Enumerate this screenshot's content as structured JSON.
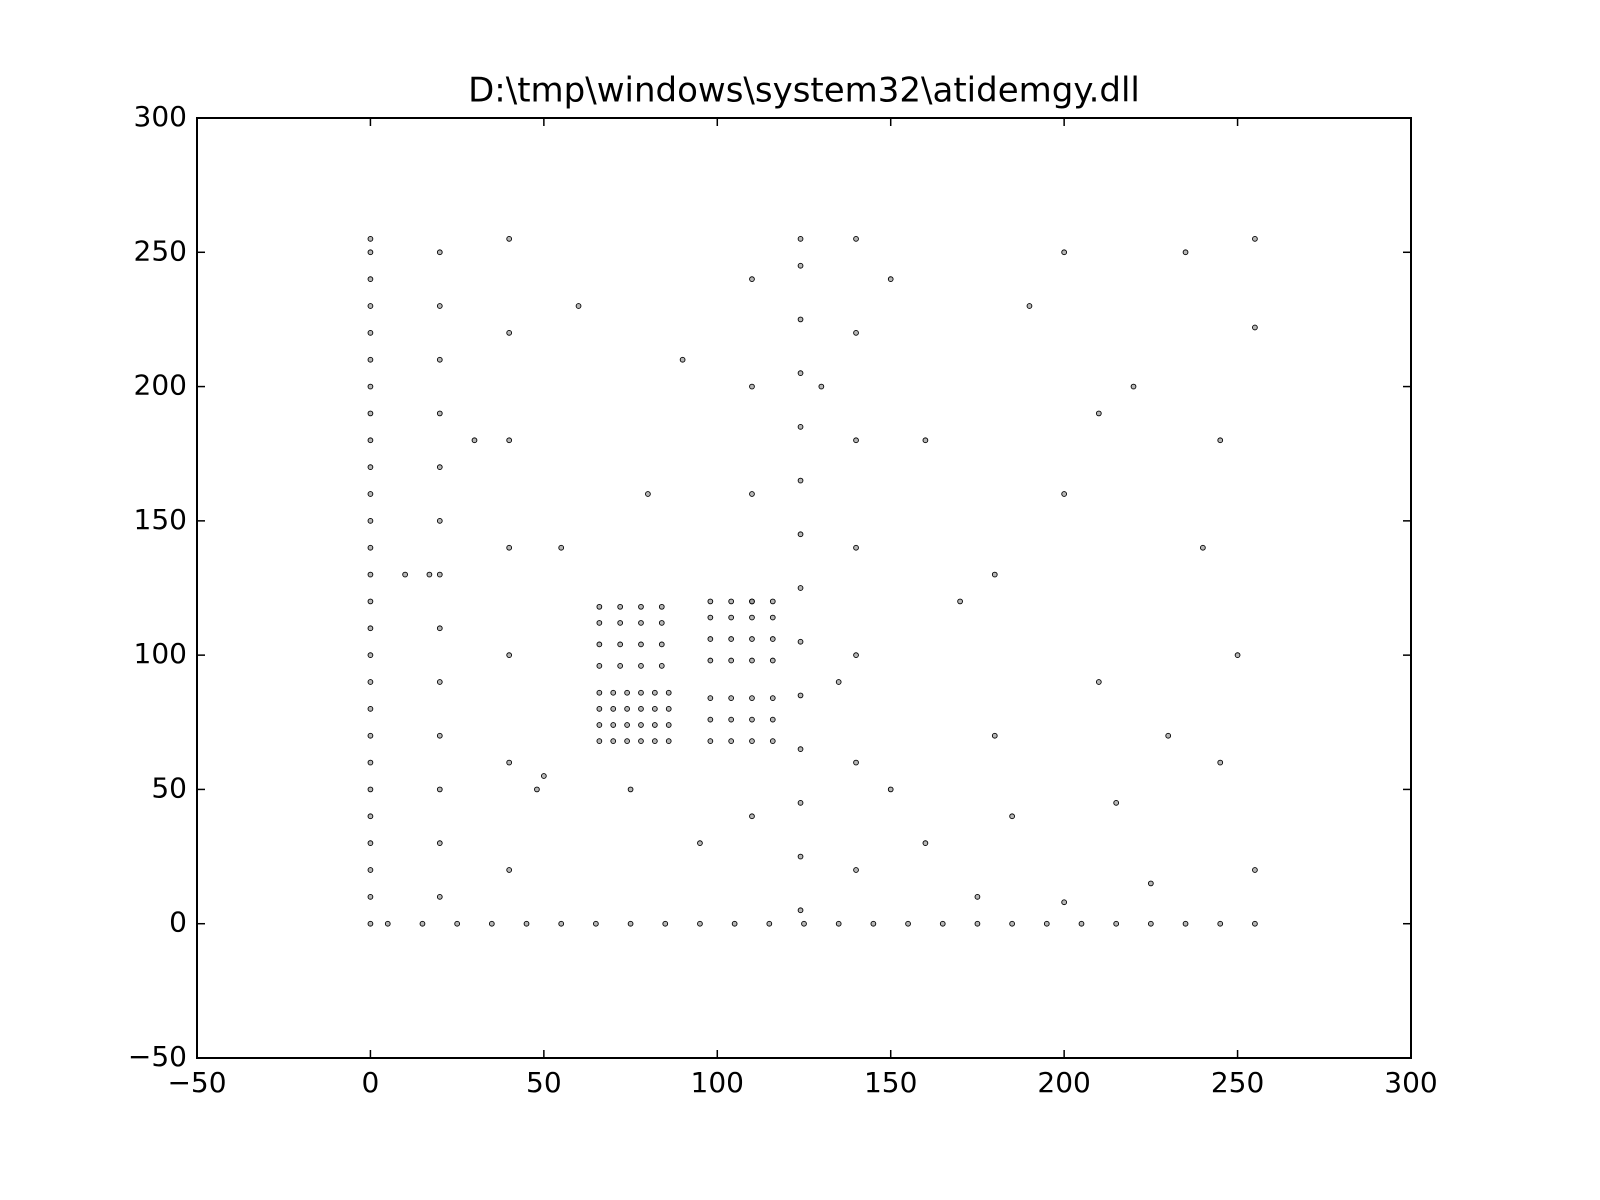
{
  "chart_data": {
    "type": "scatter",
    "title": "D:\\tmp\\windows\\system32\\atidemgy.dll",
    "color": "#000000",
    "xlim": [
      -50,
      300
    ],
    "ylim": [
      -50,
      300
    ],
    "xticks": [
      {
        "value": -50,
        "label": "−50"
      },
      0,
      50,
      100,
      150,
      200,
      250,
      300
    ],
    "yticks": [
      {
        "value": -50,
        "label": "−50"
      },
      0,
      50,
      100,
      150,
      200,
      250,
      300
    ],
    "x": [
      0,
      0,
      0,
      0,
      0,
      0,
      0,
      0,
      0,
      0,
      0,
      0,
      0,
      0,
      0,
      0,
      0,
      0,
      0,
      0,
      0,
      0,
      0,
      0,
      0,
      0,
      0,
      5,
      15,
      25,
      35,
      45,
      55,
      65,
      75,
      85,
      95,
      105,
      115,
      125,
      135,
      145,
      155,
      165,
      175,
      185,
      195,
      205,
      215,
      225,
      235,
      245,
      255,
      20,
      20,
      20,
      20,
      20,
      20,
      20,
      20,
      20,
      20,
      20,
      20,
      20,
      40,
      40,
      40,
      40,
      40,
      40,
      40,
      124,
      124,
      124,
      124,
      124,
      124,
      124,
      124,
      124,
      124,
      124,
      124,
      124,
      124,
      140,
      140,
      140,
      140,
      140,
      140,
      140,
      110,
      110,
      110,
      110,
      110,
      66,
      66,
      66,
      66,
      70,
      70,
      70,
      70,
      74,
      74,
      74,
      74,
      78,
      78,
      78,
      78,
      82,
      82,
      82,
      82,
      86,
      86,
      86,
      86,
      66,
      66,
      66,
      66,
      72,
      72,
      72,
      72,
      78,
      78,
      78,
      78,
      84,
      84,
      84,
      84,
      98,
      98,
      98,
      104,
      104,
      104,
      110,
      110,
      110,
      116,
      116,
      116,
      98,
      98,
      98,
      98,
      104,
      104,
      104,
      104,
      110,
      110,
      110,
      110,
      116,
      116,
      116,
      116,
      10,
      17,
      48,
      50,
      30,
      60,
      80,
      90,
      150,
      160,
      170,
      180,
      190,
      200,
      210,
      220,
      230,
      240,
      250,
      255,
      255,
      255,
      175,
      200,
      225,
      150,
      160,
      185,
      215,
      245,
      55,
      75,
      95,
      130,
      135,
      200,
      235,
      180,
      210,
      245
    ],
    "values": [
      0,
      10,
      20,
      30,
      40,
      50,
      60,
      70,
      80,
      90,
      100,
      110,
      120,
      130,
      140,
      150,
      160,
      170,
      180,
      190,
      200,
      210,
      220,
      230,
      240,
      250,
      255,
      0,
      0,
      0,
      0,
      0,
      0,
      0,
      0,
      0,
      0,
      0,
      0,
      0,
      0,
      0,
      0,
      0,
      0,
      0,
      0,
      0,
      0,
      0,
      0,
      0,
      0,
      10,
      30,
      50,
      70,
      90,
      110,
      130,
      150,
      170,
      190,
      210,
      230,
      250,
      20,
      60,
      100,
      140,
      180,
      220,
      255,
      5,
      25,
      45,
      65,
      85,
      105,
      125,
      145,
      165,
      185,
      205,
      225,
      245,
      255,
      20,
      60,
      100,
      140,
      180,
      220,
      255,
      40,
      120,
      160,
      200,
      240,
      68,
      74,
      80,
      86,
      68,
      74,
      80,
      86,
      68,
      74,
      80,
      86,
      68,
      74,
      80,
      86,
      68,
      74,
      80,
      86,
      68,
      74,
      80,
      86,
      96,
      104,
      112,
      118,
      96,
      104,
      112,
      118,
      96,
      104,
      112,
      118,
      96,
      104,
      112,
      118,
      68,
      76,
      84,
      68,
      76,
      84,
      68,
      76,
      84,
      68,
      76,
      84,
      98,
      106,
      114,
      120,
      98,
      106,
      114,
      120,
      98,
      106,
      114,
      120,
      98,
      106,
      114,
      120,
      130,
      130,
      50,
      55,
      180,
      230,
      160,
      210,
      240,
      180,
      120,
      70,
      230,
      160,
      90,
      200,
      70,
      140,
      100,
      255,
      222,
      20,
      10,
      8,
      15,
      50,
      30,
      40,
      45,
      60,
      140,
      50,
      30,
      200,
      90,
      250,
      250,
      130,
      190,
      180
    ]
  }
}
